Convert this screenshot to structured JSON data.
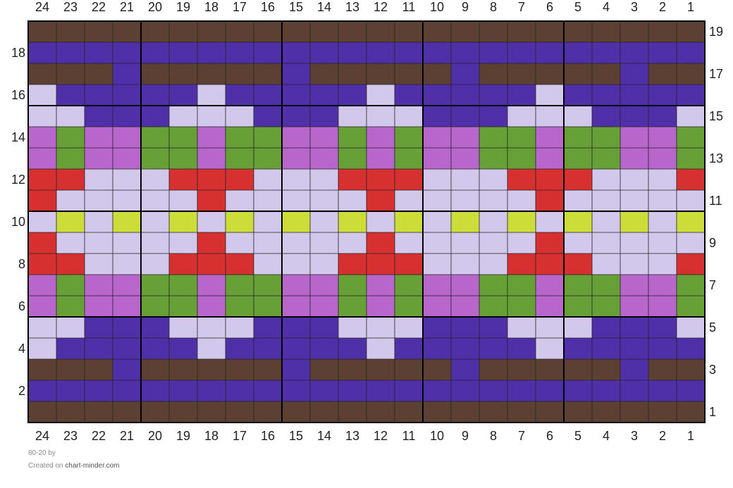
{
  "footer": {
    "pattern_name": "80-20",
    "by_label": "by",
    "created_on": "Created on",
    "site": "chart-minder.com"
  },
  "chart_data": {
    "type": "grid",
    "columns": 24,
    "rows": 19,
    "column_labels_order": "right-to-left",
    "row_labels_order": "bottom-to-top",
    "block_size": 5,
    "colors": {
      "B": "#5c4033",
      "P": "#5030a8",
      "L": "#d2c8ec",
      "M": "#b866cc",
      "G": "#66a036",
      "R": "#d73030",
      "Y": "#ccdd3a"
    },
    "color_names": {
      "B": "brown",
      "P": "purple",
      "L": "lavender",
      "M": "orchid",
      "G": "green",
      "R": "red",
      "Y": "yellow-green"
    },
    "grid_rows_top_to_bottom": [
      "BBBBBBBBBBBBBBBBBBBBBBBB",
      "PPPPPPPPPPPPPPPPPPPPPPPP",
      "BBBPBBBBBPBBBBBPBBBBBPBB",
      "LPPPPPLPPPPPLPPPPPLPPPPP",
      "LLPPPLLLPPPLLLPPPLLLPPPL",
      "MGMMGGMGGMMGMGMMGGMGGMMG",
      "MGMMGGMGGMMGMGMMGGMGGMMG",
      "RRLLLRRRLLLRRRLLLRRRLLLR",
      "RLLLLLRLLLLLRLLLLLRLLLLL",
      "LYLYLYLYLYLYLYLYLYLYLYLY",
      "RLLLLLRLLLLLRLLLLLRLLLLL",
      "RRLLLRRRLLLRRRLLLRRRLLLR",
      "MGMMGGMGGMMGMGMMGGMGGMMG",
      "MGMMGGMGGMMGMGMMGGMGGMMG",
      "LLPPPLLLPPPLLLPPPLLLPPPL",
      "LPPPPPLPPPPPLPPPPPLPPPPP",
      "BBBPBBBBBPBBBBBPBBBBBPBB",
      "PPPPPPPPPPPPPPPPPPPPPPPP",
      "BBBBBBBBBBBBBBBBBBBBBBBB"
    ]
  }
}
